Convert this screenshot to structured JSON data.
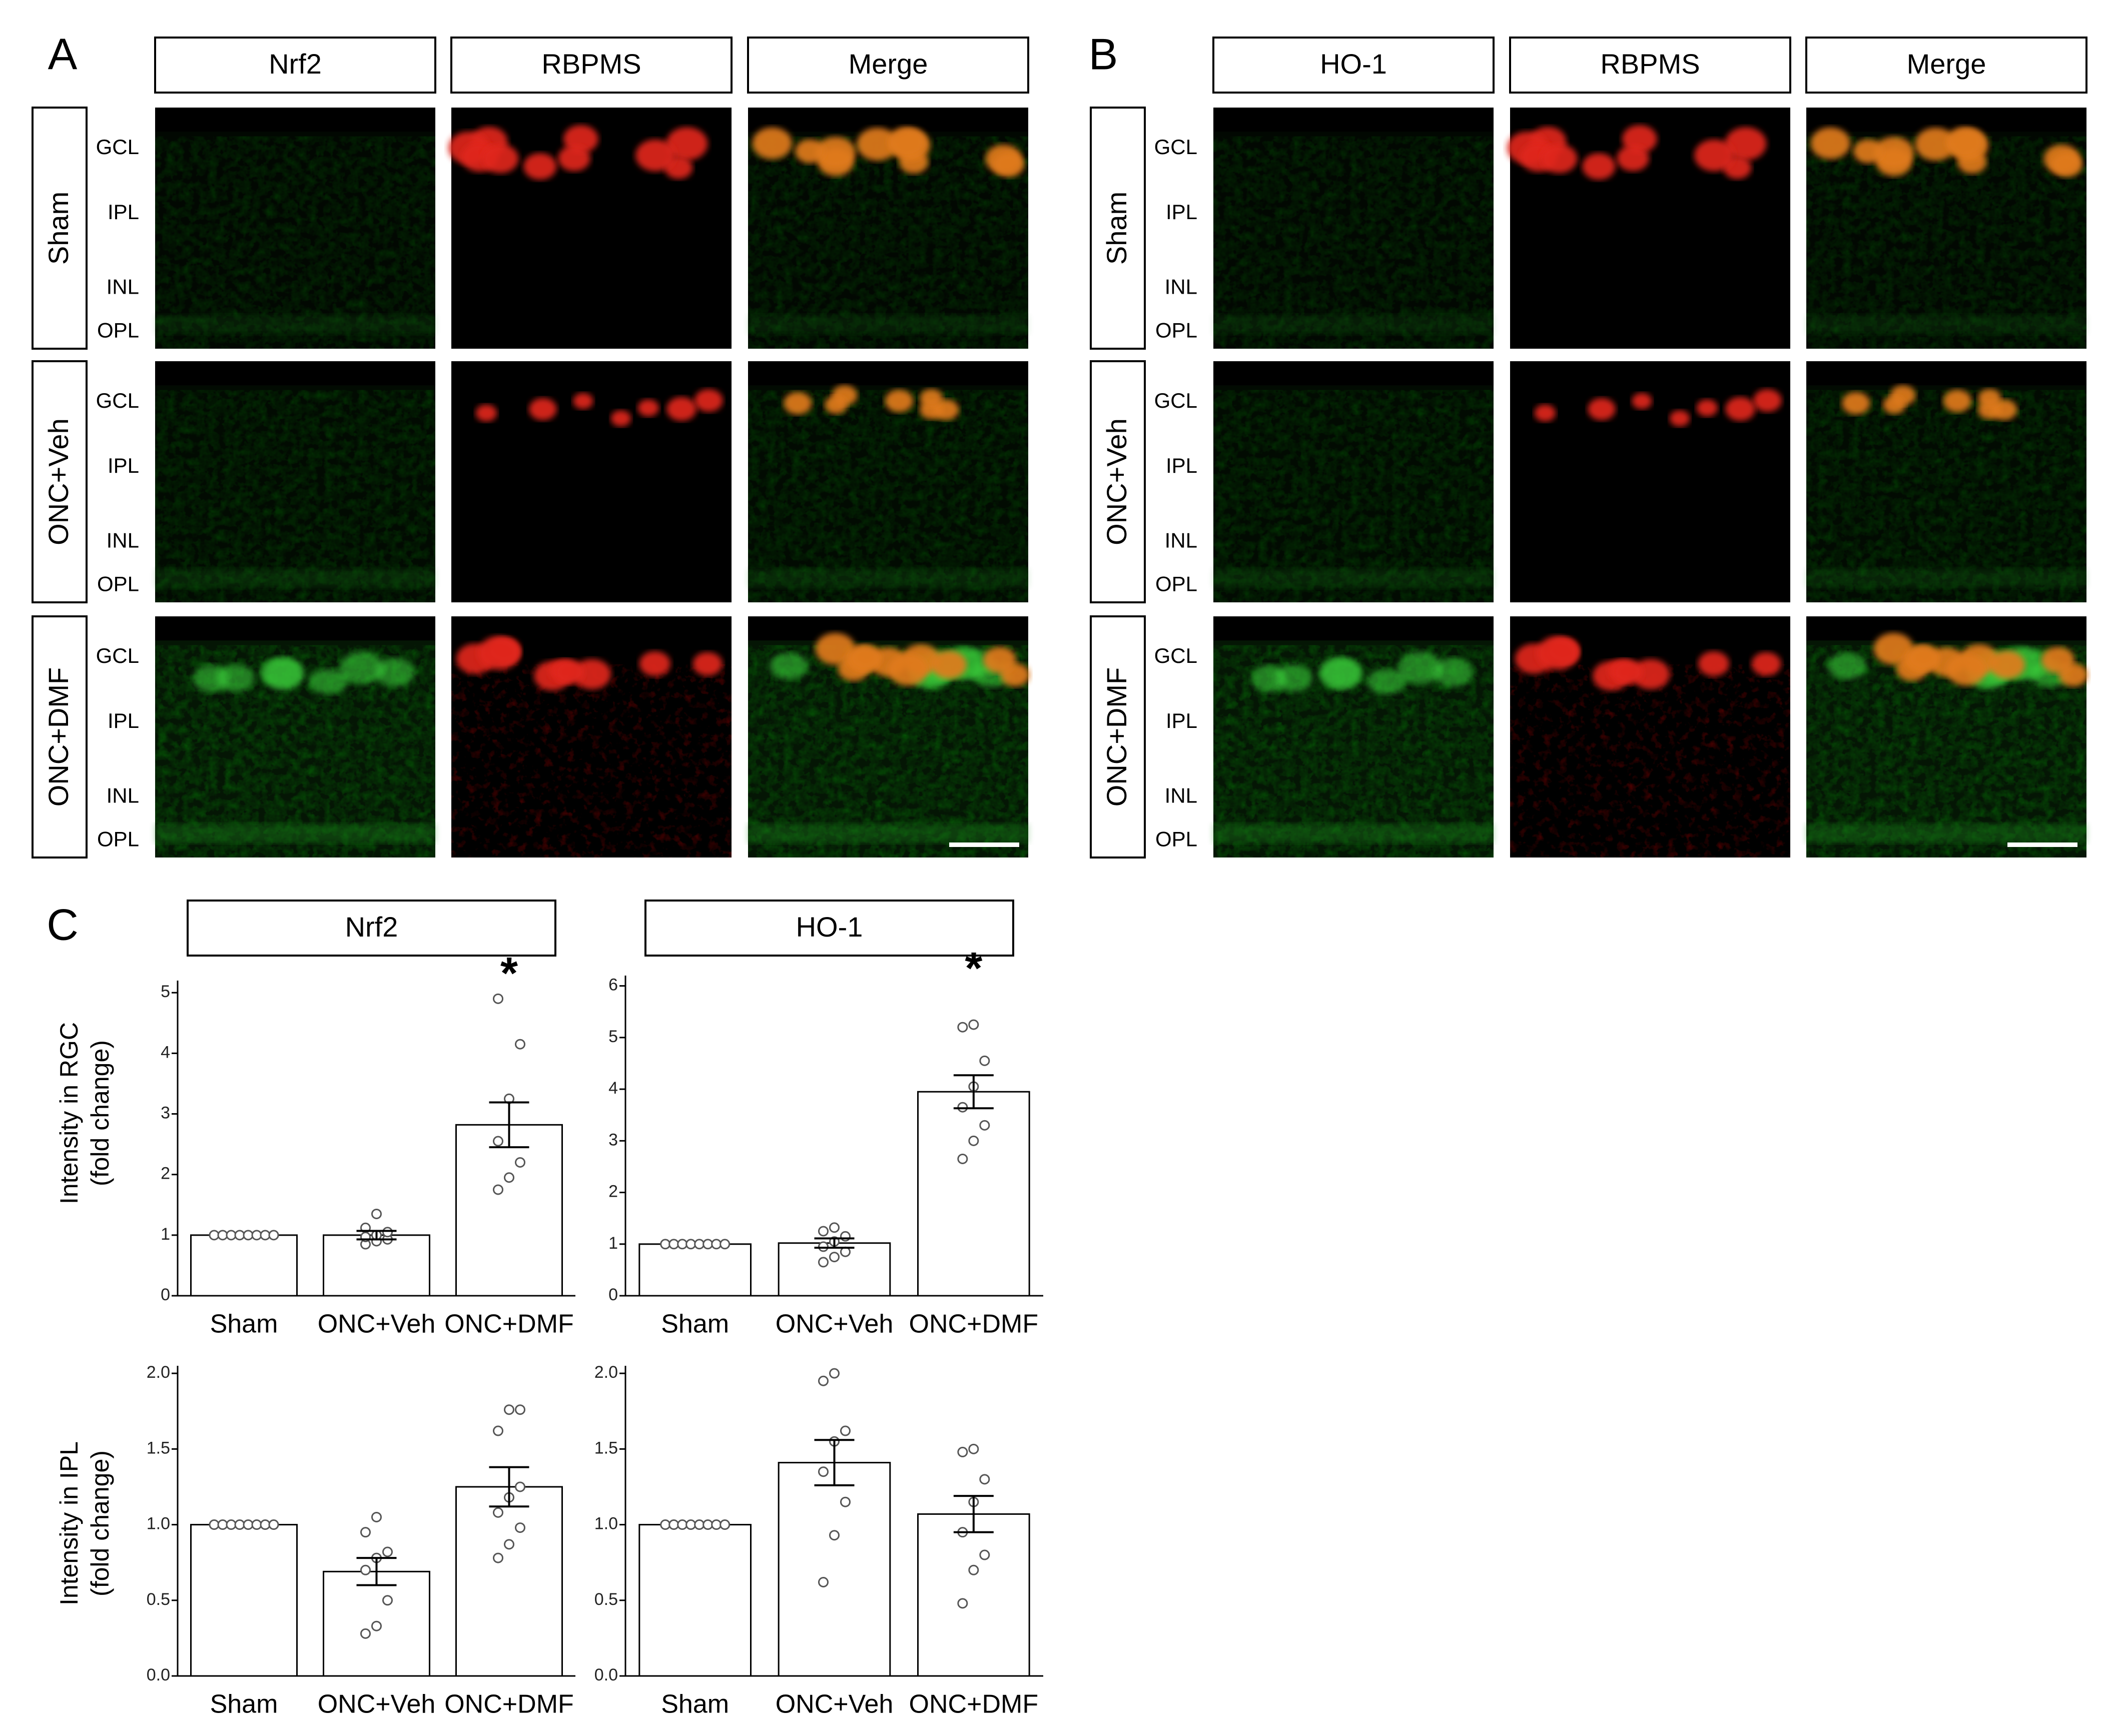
{
  "panel_letters": {
    "a": "A",
    "b": "B",
    "c": "C"
  },
  "panel_a": {
    "columns": [
      "Nrf2",
      "RBPMS",
      "Merge"
    ],
    "rows": [
      {
        "label": "Sham",
        "layers": [
          "GCL",
          "IPL",
          "INL",
          "OPL"
        ]
      },
      {
        "label": "ONC+Veh",
        "layers": [
          "GCL",
          "IPL",
          "INL",
          "OPL"
        ]
      },
      {
        "label": "ONC+DMF",
        "layers": [
          "GCL",
          "IPL",
          "INL",
          "OPL"
        ]
      }
    ]
  },
  "panel_b": {
    "columns": [
      "HO-1",
      "RBPMS",
      "Merge"
    ],
    "rows": [
      {
        "label": "Sham",
        "layers": [
          "GCL",
          "IPL",
          "INL",
          "OPL"
        ]
      },
      {
        "label": "ONC+Veh",
        "layers": [
          "GCL",
          "IPL",
          "INL",
          "OPL"
        ]
      },
      {
        "label": "ONC+DMF",
        "layers": [
          "GCL",
          "IPL",
          "INL",
          "OPL"
        ]
      }
    ]
  },
  "colors": {
    "green_channel": "#1f8a1f",
    "red_channel": "#e0261a",
    "merge_orange": "#e07a1a",
    "frame": "#000000",
    "bar_fill": "#ffffff",
    "point": "#555555"
  },
  "panel_c": {
    "column_titles": [
      "Nrf2",
      "HO-1"
    ],
    "row_ylabels": [
      [
        "Intensity in RGC",
        "(fold change)"
      ],
      [
        "Intensity in IPL",
        "(fold change)"
      ]
    ],
    "significance_mark": "*"
  },
  "chart_data": [
    {
      "type": "bar",
      "marker": "Nrf2",
      "measure": "Intensity in RGC (fold change)",
      "categories": [
        "Sham",
        "ONC+Veh",
        "ONC+DMF"
      ],
      "values": [
        1.0,
        1.0,
        2.82
      ],
      "sem": [
        0.0,
        0.07,
        0.37
      ],
      "points": [
        [
          1,
          1,
          1,
          1,
          1,
          1,
          1,
          1
        ],
        [
          0.85,
          0.9,
          0.93,
          0.97,
          1.0,
          1.05,
          1.12,
          1.35
        ],
        [
          1.75,
          1.95,
          2.2,
          2.55,
          3.25,
          4.15,
          4.9
        ]
      ],
      "significance": [
        false,
        false,
        true
      ],
      "yticks": [
        "0",
        "1",
        "2",
        "3",
        "4",
        "5"
      ],
      "ylim": [
        0,
        5.2
      ]
    },
    {
      "type": "bar",
      "marker": "HO-1",
      "measure": "Intensity in RGC (fold change)",
      "categories": [
        "Sham",
        "ONC+Veh",
        "ONC+DMF"
      ],
      "values": [
        1.0,
        1.02,
        3.95
      ],
      "sem": [
        0.0,
        0.09,
        0.32
      ],
      "points": [
        [
          1,
          1,
          1,
          1,
          1,
          1,
          1,
          1
        ],
        [
          0.65,
          0.75,
          0.85,
          0.95,
          1.05,
          1.15,
          1.25,
          1.32
        ],
        [
          2.65,
          3.0,
          3.3,
          3.65,
          4.05,
          4.55,
          5.2,
          5.25
        ]
      ],
      "significance": [
        false,
        false,
        true
      ],
      "yticks": [
        "0",
        "1",
        "2",
        "3",
        "4",
        "5",
        "6"
      ],
      "ylim": [
        0,
        6.2
      ]
    },
    {
      "type": "bar",
      "marker": "Nrf2",
      "measure": "Intensity in IPL (fold change)",
      "categories": [
        "Sham",
        "ONC+Veh",
        "ONC+DMF"
      ],
      "values": [
        1.0,
        0.69,
        1.25
      ],
      "sem": [
        0.0,
        0.09,
        0.13
      ],
      "points": [
        [
          1,
          1,
          1,
          1,
          1,
          1,
          1,
          1
        ],
        [
          0.28,
          0.33,
          0.5,
          0.7,
          0.78,
          0.82,
          0.95,
          1.05
        ],
        [
          0.78,
          0.87,
          0.98,
          1.08,
          1.18,
          1.25,
          1.62,
          1.76,
          1.76
        ]
      ],
      "significance": [
        false,
        false,
        false
      ],
      "yticks": [
        "0.0",
        "0.5",
        "1.0",
        "1.5",
        "2.0"
      ],
      "ylim": [
        0,
        2.05
      ]
    },
    {
      "type": "bar",
      "marker": "HO-1",
      "measure": "Intensity in IPL (fold change)",
      "categories": [
        "Sham",
        "ONC+Veh",
        "ONC+DMF"
      ],
      "values": [
        1.0,
        1.41,
        1.07
      ],
      "sem": [
        0.0,
        0.15,
        0.12
      ],
      "points": [
        [
          1,
          1,
          1,
          1,
          1,
          1,
          1,
          1
        ],
        [
          0.62,
          0.93,
          1.15,
          1.35,
          1.55,
          1.62,
          1.95,
          2.0
        ],
        [
          0.48,
          0.7,
          0.8,
          0.95,
          1.15,
          1.3,
          1.48,
          1.5
        ]
      ],
      "significance": [
        false,
        false,
        false
      ],
      "yticks": [
        "0.0",
        "0.5",
        "1.0",
        "1.5",
        "2.0"
      ],
      "ylim": [
        0,
        2.05
      ]
    }
  ]
}
